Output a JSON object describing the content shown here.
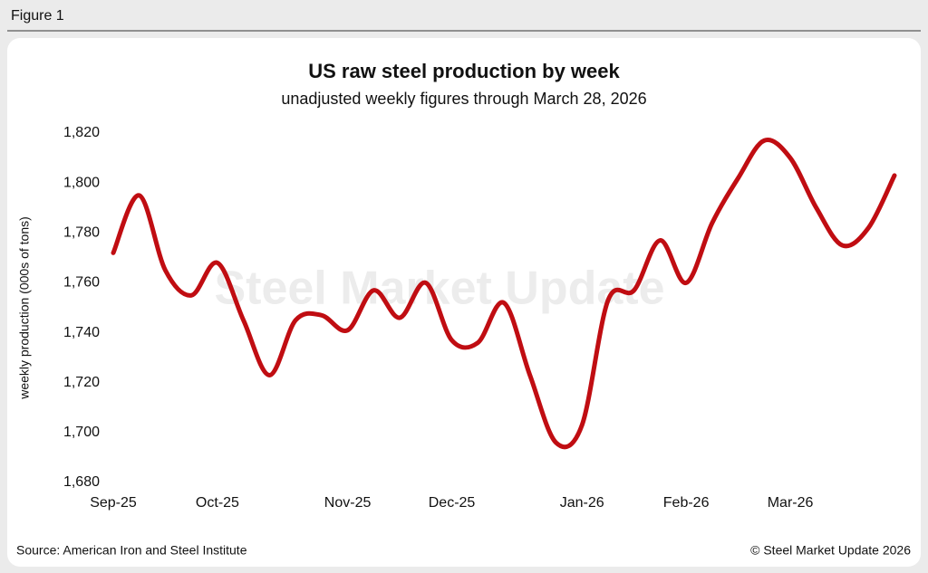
{
  "figure_label": "Figure 1",
  "chart_data": {
    "type": "line",
    "title": "US raw steel production by week",
    "subtitle": "unadjusted weekly figures through March 28, 2026",
    "ylabel": "weekly production (000s of tons)",
    "watermark": "Steel Market Update",
    "categories": [
      "Sep-25",
      null,
      null,
      null,
      "Oct-25",
      null,
      null,
      null,
      null,
      "Nov-25",
      null,
      null,
      null,
      "Dec-25",
      null,
      null,
      null,
      null,
      "Jan-26",
      null,
      null,
      null,
      "Feb-26",
      null,
      null,
      null,
      "Mar-26",
      null,
      null,
      null,
      null
    ],
    "series": [
      {
        "name": "US raw steel production",
        "color": "#c00d12",
        "values": [
          1772,
          1795,
          1765,
          1755,
          1768,
          1745,
          1723,
          1745,
          1747,
          1741,
          1757,
          1746,
          1760,
          1737,
          1736,
          1752,
          1723,
          1696,
          1703,
          1753,
          1757,
          1777,
          1760,
          1784,
          1802,
          1817,
          1810,
          1790,
          1775,
          1782,
          1803
        ]
      }
    ],
    "ylim": [
      1680,
      1820
    ],
    "yticks": [
      {
        "value": 1680,
        "label": "1,680"
      },
      {
        "value": 1700,
        "label": "1,700"
      },
      {
        "value": 1720,
        "label": "1,720"
      },
      {
        "value": 1740,
        "label": "1,740"
      },
      {
        "value": 1760,
        "label": "1,760"
      },
      {
        "value": 1780,
        "label": "1,780"
      },
      {
        "value": 1800,
        "label": "1,800"
      },
      {
        "value": 1820,
        "label": "1,820"
      }
    ],
    "grid": false,
    "source": "Source: American Iron and Steel Institute",
    "credit": "© Steel Market Update 2026"
  }
}
